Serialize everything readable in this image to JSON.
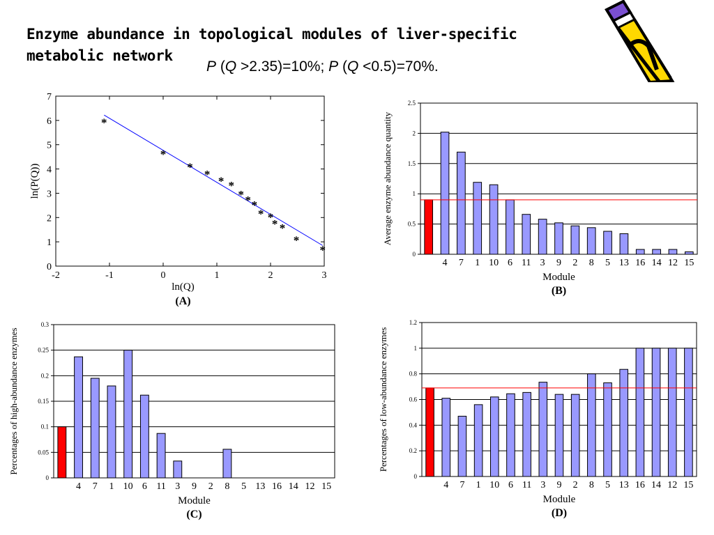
{
  "slide": {
    "title": "Enzyme abundance in topological modules of liver-specific metabolic network",
    "stats": {
      "p1_var": "P",
      "p1_open": " (",
      "p1_q": "Q",
      "p1_rest": " >2.35)=10%;  ",
      "p2_var": "P",
      "p2_open": " (",
      "p2_q": "Q",
      "p2_rest": " <0.5)=70%."
    },
    "decoration_icon": "pencil-icon"
  },
  "colors": {
    "bar": "#9999ff",
    "highlight_bar": "#ff0000",
    "fit_line": "#0000ff",
    "ref_line": "#ff0000"
  },
  "chart_data": [
    {
      "id": "A",
      "type": "scatter",
      "caption": "(A)",
      "xlabel": "ln(Q)",
      "ylabel": "ln(P(Q))",
      "xlim": [
        -2,
        3
      ],
      "ylim": [
        0,
        7
      ],
      "xticks": [
        -2,
        -1,
        0,
        1,
        2,
        3
      ],
      "yticks": [
        0,
        1,
        2,
        3,
        4,
        5,
        6,
        7
      ],
      "points": [
        [
          -1.1,
          5.95
        ],
        [
          0.0,
          4.65
        ],
        [
          0.5,
          4.12
        ],
        [
          0.82,
          3.82
        ],
        [
          1.08,
          3.55
        ],
        [
          1.27,
          3.35
        ],
        [
          1.45,
          2.98
        ],
        [
          1.58,
          2.75
        ],
        [
          1.7,
          2.55
        ],
        [
          1.82,
          2.2
        ],
        [
          2.0,
          2.05
        ],
        [
          2.08,
          1.78
        ],
        [
          2.22,
          1.6
        ],
        [
          2.48,
          1.1
        ],
        [
          2.97,
          0.7
        ]
      ],
      "fit_line": [
        [
          -1.1,
          6.22
        ],
        [
          2.97,
          0.85
        ]
      ],
      "grid": false
    },
    {
      "id": "B",
      "type": "bar",
      "caption": "(B)",
      "xlabel": "Module",
      "ylabel": "Average enzyme abundance quantity",
      "ylim": [
        0,
        2.5
      ],
      "yticks": [
        "0",
        "0.5",
        "1",
        "1.5",
        "2",
        "2.5"
      ],
      "categories": [
        "",
        "4",
        "7",
        "1",
        "10",
        "6",
        "11",
        "3",
        "9",
        "2",
        "8",
        "5",
        "13",
        "16",
        "14",
        "12",
        "15"
      ],
      "values": [
        0.9,
        2.02,
        1.69,
        1.19,
        1.15,
        0.9,
        0.66,
        0.58,
        0.52,
        0.47,
        0.44,
        0.38,
        0.34,
        0.08,
        0.08,
        0.08,
        0.04
      ],
      "reference_line": 0.9,
      "grid": true
    },
    {
      "id": "C",
      "type": "bar",
      "caption": "(C)",
      "xlabel": "Module",
      "ylabel": "Percentages of high-abundance enzymes",
      "ylim": [
        0,
        0.3
      ],
      "yticks": [
        "0",
        "0.05",
        "0.1",
        "0.15",
        "0.2",
        "0.25",
        "0.3"
      ],
      "categories": [
        "",
        "4",
        "7",
        "1",
        "10",
        "6",
        "11",
        "3",
        "9",
        "2",
        "8",
        "5",
        "13",
        "16",
        "14",
        "12",
        "15"
      ],
      "values": [
        0.1,
        0.237,
        0.195,
        0.18,
        0.25,
        0.162,
        0.087,
        0.033,
        0,
        0,
        0.056,
        0,
        0,
        0,
        0,
        0,
        0
      ],
      "grid": true
    },
    {
      "id": "D",
      "type": "bar",
      "caption": "(D)",
      "xlabel": "Module",
      "ylabel": "Percentages of low-abundance enzymes",
      "ylim": [
        0,
        1.2
      ],
      "yticks": [
        "0",
        "0.2",
        "0.4",
        "0.6",
        "0.8",
        "1",
        "1.2"
      ],
      "categories": [
        "",
        "4",
        "7",
        "1",
        "10",
        "6",
        "11",
        "3",
        "9",
        "2",
        "8",
        "5",
        "13",
        "16",
        "14",
        "12",
        "15"
      ],
      "values": [
        0.69,
        0.61,
        0.47,
        0.56,
        0.62,
        0.645,
        0.655,
        0.735,
        0.64,
        0.64,
        0.8,
        0.73,
        0.835,
        1.0,
        1.0,
        1.0,
        1.0
      ],
      "reference_line": 0.69,
      "grid": true
    }
  ]
}
